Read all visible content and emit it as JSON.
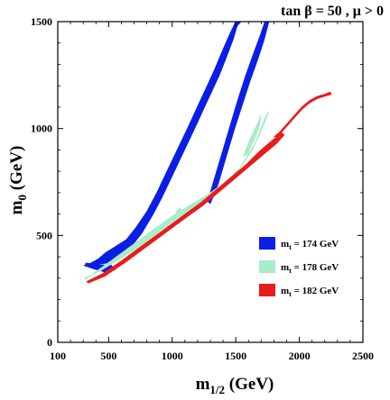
{
  "chart_data": {
    "type": "area",
    "title": "tan β = 50 ,  μ > 0",
    "xlabel": "m",
    "xlabel_sub": "1/2",
    "xlabel_unit": "(GeV)",
    "ylabel": "m",
    "ylabel_sub": "0",
    "ylabel_unit": "(GeV)",
    "xlim": [
      100,
      2500
    ],
    "ylim": [
      0,
      1500
    ],
    "x_ticks": [
      100,
      500,
      1000,
      1500,
      2000,
      2500
    ],
    "y_ticks": [
      0,
      500,
      1000,
      1500
    ],
    "grid": false,
    "legend_position": "lower-right",
    "series": [
      {
        "name": "174",
        "legend_prefix": "m",
        "legend_sub": "t",
        "legend_suffix": "= 174 GeV",
        "color": "#0a1ee6",
        "regions": [
          [
            [
              320,
              370
            ],
            [
              420,
              365
            ],
            [
              520,
              375
            ],
            [
              640,
              420
            ],
            [
              760,
              510
            ],
            [
              850,
              600
            ],
            [
              920,
              680
            ],
            [
              1000,
              780
            ],
            [
              1080,
              880
            ],
            [
              1160,
              980
            ],
            [
              1230,
              1070
            ],
            [
              1300,
              1160
            ],
            [
              1370,
              1250
            ],
            [
              1430,
              1340
            ],
            [
              1480,
              1420
            ],
            [
              1510,
              1480
            ],
            [
              1540,
              1500
            ],
            [
              1500,
              1500
            ],
            [
              1460,
              1450
            ],
            [
              1400,
              1370
            ],
            [
              1330,
              1270
            ],
            [
              1260,
              1180
            ],
            [
              1190,
              1090
            ],
            [
              1120,
              1000
            ],
            [
              1040,
              900
            ],
            [
              960,
              800
            ],
            [
              880,
              700
            ],
            [
              800,
              610
            ],
            [
              720,
              540
            ],
            [
              640,
              480
            ],
            [
              560,
              450
            ],
            [
              480,
              420
            ],
            [
              420,
              390
            ],
            [
              360,
              370
            ],
            [
              320,
              355
            ]
          ],
          [
            [
              1280,
              660
            ],
            [
              1330,
              760
            ],
            [
              1400,
              900
            ],
            [
              1460,
              1020
            ],
            [
              1520,
              1140
            ],
            [
              1580,
              1250
            ],
            [
              1640,
              1350
            ],
            [
              1690,
              1430
            ],
            [
              1730,
              1500
            ],
            [
              1760,
              1500
            ],
            [
              1720,
              1410
            ],
            [
              1670,
              1320
            ],
            [
              1610,
              1220
            ],
            [
              1550,
              1110
            ],
            [
              1490,
              1000
            ],
            [
              1430,
              880
            ],
            [
              1360,
              740
            ],
            [
              1300,
              650
            ]
          ],
          [
            [
              310,
              360
            ],
            [
              380,
              345
            ],
            [
              470,
              330
            ],
            [
              550,
              340
            ],
            [
              520,
              360
            ],
            [
              430,
              362
            ],
            [
              340,
              368
            ]
          ]
        ]
      },
      {
        "name": "178",
        "legend_prefix": "m",
        "legend_sub": "t",
        "legend_suffix": "= 178 GeV",
        "color": "#a8ecc8",
        "regions": [
          [
            [
              310,
              300
            ],
            [
              420,
              330
            ],
            [
              560,
              380
            ],
            [
              720,
              440
            ],
            [
              880,
              510
            ],
            [
              1040,
              580
            ],
            [
              1200,
              640
            ],
            [
              1340,
              690
            ],
            [
              1480,
              770
            ],
            [
              1580,
              860
            ],
            [
              1660,
              940
            ],
            [
              1730,
              1050
            ],
            [
              1760,
              1080
            ],
            [
              1700,
              990
            ],
            [
              1630,
              900
            ],
            [
              1540,
              820
            ],
            [
              1420,
              750
            ],
            [
              1280,
              690
            ],
            [
              1140,
              640
            ],
            [
              1000,
              590
            ],
            [
              860,
              530
            ],
            [
              700,
              460
            ],
            [
              540,
              390
            ],
            [
              400,
              330
            ],
            [
              320,
              295
            ]
          ],
          [
            [
              1040,
              590
            ],
            [
              1080,
              610
            ],
            [
              1060,
              630
            ],
            [
              1030,
              610
            ]
          ],
          [
            [
              1560,
              870
            ],
            [
              1620,
              960
            ],
            [
              1660,
              1010
            ],
            [
              1700,
              1060
            ],
            [
              1680,
              1000
            ],
            [
              1630,
              930
            ],
            [
              1590,
              880
            ]
          ]
        ]
      },
      {
        "name": "182",
        "legend_prefix": "m",
        "legend_sub": "t",
        "legend_suffix": "= 182 GeV",
        "color": "#e81c1c",
        "regions": [
          [
            [
              330,
              285
            ],
            [
              450,
              320
            ],
            [
              600,
              380
            ],
            [
              760,
              450
            ],
            [
              920,
              520
            ],
            [
              1080,
              590
            ],
            [
              1220,
              650
            ],
            [
              1340,
              710
            ],
            [
              1460,
              770
            ],
            [
              1580,
              830
            ],
            [
              1700,
              900
            ],
            [
              1800,
              950
            ],
            [
              1860,
              980
            ],
            [
              1880,
              970
            ],
            [
              1820,
              930
            ],
            [
              1720,
              880
            ],
            [
              1600,
              820
            ],
            [
              1480,
              760
            ],
            [
              1360,
              700
            ],
            [
              1240,
              640
            ],
            [
              1100,
              580
            ],
            [
              940,
              510
            ],
            [
              780,
              440
            ],
            [
              620,
              370
            ],
            [
              470,
              310
            ],
            [
              340,
              278
            ]
          ],
          [
            [
              1800,
              960
            ],
            [
              1840,
              980
            ],
            [
              1900,
              1020
            ],
            [
              1960,
              1060
            ],
            [
              2020,
              1100
            ],
            [
              2080,
              1130
            ],
            [
              2140,
              1150
            ],
            [
              2200,
              1160
            ],
            [
              2240,
              1170
            ],
            [
              2250,
              1160
            ],
            [
              2200,
              1152
            ],
            [
              2140,
              1140
            ],
            [
              2080,
              1120
            ],
            [
              2020,
              1090
            ],
            [
              1960,
              1050
            ],
            [
              1900,
              1010
            ],
            [
              1840,
              970
            ]
          ]
        ]
      }
    ]
  }
}
